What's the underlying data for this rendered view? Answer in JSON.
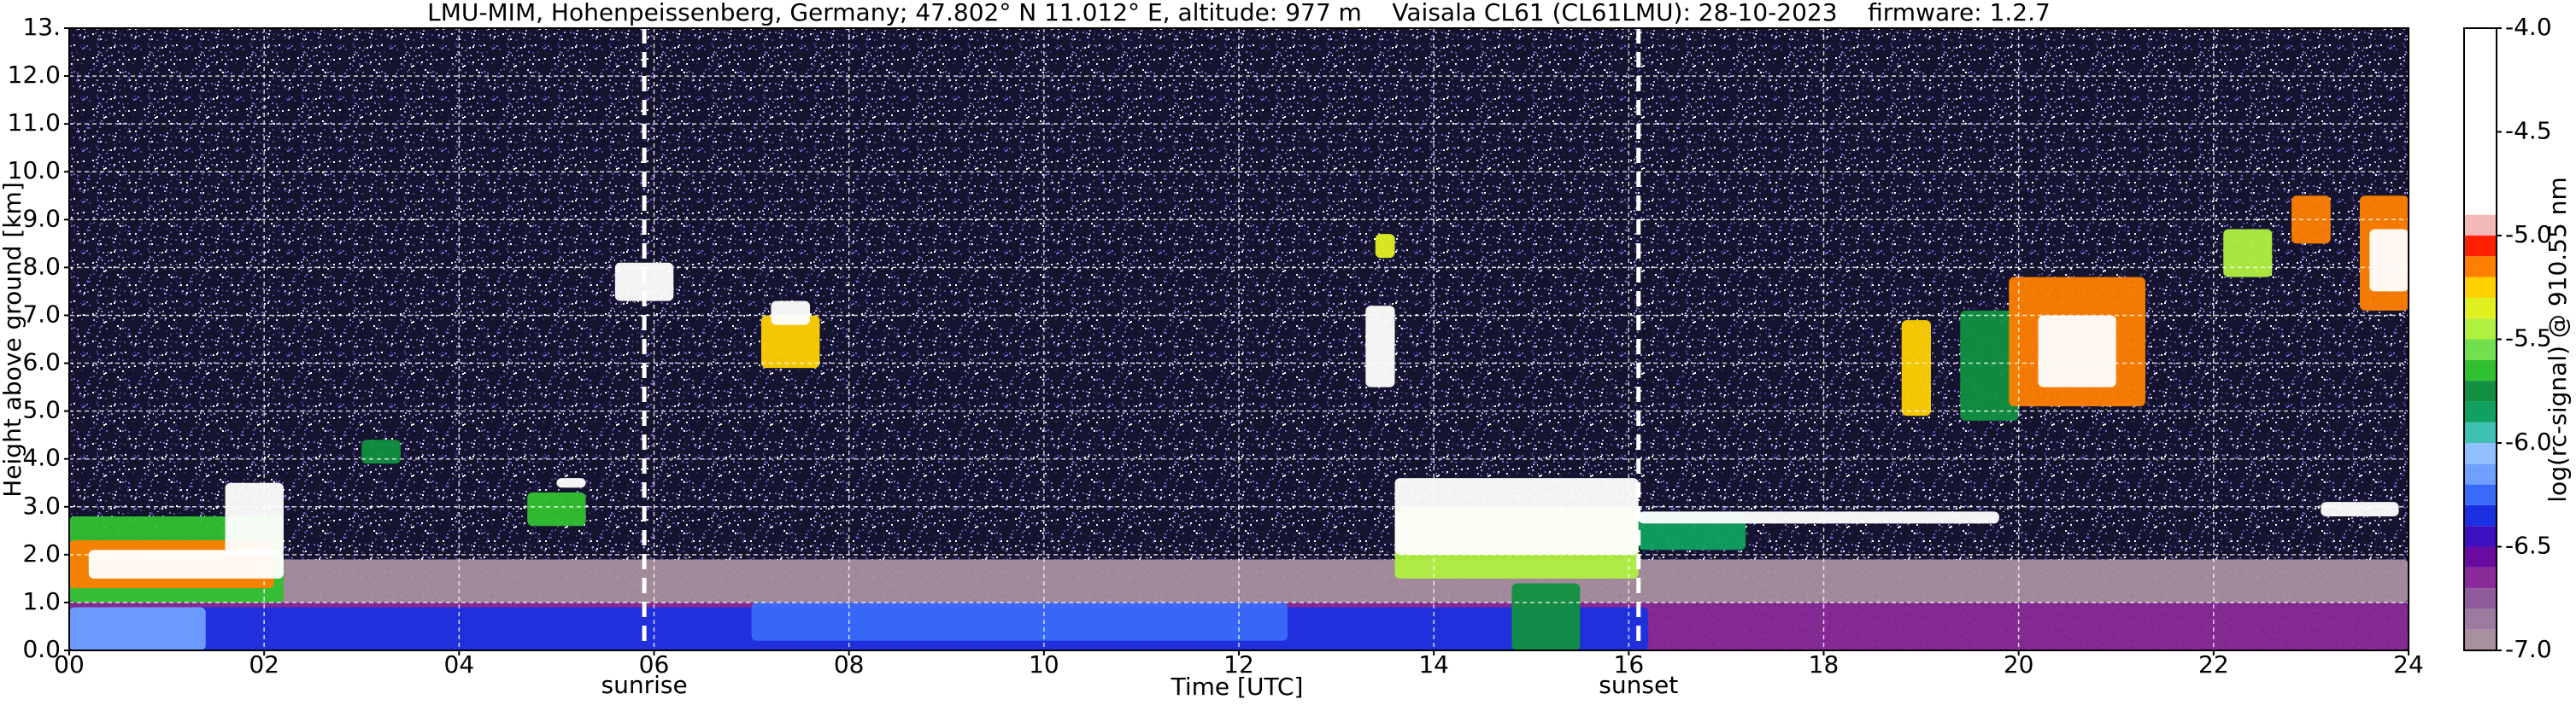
{
  "chart_data": {
    "type": "heatmap",
    "title": "LMU-MIM, Hohenpeissenberg, Germany; 47.802° N 11.012° E, altitude: 977 m    Vaisala CL61 (CL61LMU): 28-10-2023    firmware: 1.2.7",
    "x_label": "Time [UTC]",
    "y_label": "Height above ground [km]",
    "xlim": [
      0,
      24
    ],
    "xticks": [
      {
        "value": 0,
        "label": "00"
      },
      {
        "value": 2,
        "label": "02"
      },
      {
        "value": 4,
        "label": "04"
      },
      {
        "value": 6,
        "label": "06"
      },
      {
        "value": 8,
        "label": "08"
      },
      10,
      12,
      14,
      16,
      18,
      20,
      22,
      24
    ],
    "ylim": [
      0,
      13
    ],
    "yticks": [
      {
        "value": 0,
        "label": "0.0"
      },
      {
        "value": 1,
        "label": "1.0"
      },
      {
        "value": 2,
        "label": "2.0"
      },
      {
        "value": 3,
        "label": "3.0"
      },
      {
        "value": 4,
        "label": "4.0"
      },
      {
        "value": 5,
        "label": "5.0"
      },
      {
        "value": 6,
        "label": "6.0"
      },
      {
        "value": 7,
        "label": "7.0"
      },
      {
        "value": 8,
        "label": "8.0"
      },
      {
        "value": 9,
        "label": "9.0"
      },
      {
        "value": 10,
        "label": "10.0"
      },
      {
        "value": 11,
        "label": "11.0"
      },
      {
        "value": 12,
        "label": "12.0"
      },
      {
        "value": 13,
        "label": "13."
      }
    ],
    "grid": true,
    "annotations": [
      {
        "text": "sunrise",
        "x": 5.9
      },
      {
        "text": "sunset",
        "x": 16.1
      }
    ],
    "colorbar": {
      "label": "log(rc-signal) @ 910.55 nm",
      "lim": [
        -7,
        -4
      ],
      "ticks": [
        {
          "value": -7,
          "label": "-7.0"
        },
        -6.5,
        {
          "value": -6,
          "label": "-6.0"
        },
        -5.5,
        {
          "value": -5,
          "label": "-5.0"
        },
        -4.5,
        {
          "value": -4,
          "label": "-4.0"
        }
      ],
      "bounds": [
        -7,
        -6.9,
        -6.8,
        -6.7,
        -6.6,
        -6.5,
        -6.4,
        -6.3,
        -6.2,
        -6.1,
        -6,
        -5.9,
        -5.8,
        -5.7,
        -5.6,
        -5.5,
        -5.4,
        -5.3,
        -5.2,
        -5.1,
        -5,
        -4.9,
        -4
      ],
      "colors": [
        "#a8909f",
        "#9c7ba0",
        "#8e5a9a",
        "#8a2a98",
        "#6a0aa0",
        "#3a10c0",
        "#1a30e0",
        "#3a6af8",
        "#70a0ff",
        "#90c0ff",
        "#40c0b0",
        "#10a060",
        "#109040",
        "#30c030",
        "#70e050",
        "#b0f040",
        "#e0f020",
        "#ffd000",
        "#ff8000",
        "#ff2000",
        "#f3b8b8",
        "#ffffff"
      ]
    },
    "regions": [
      {
        "x": [
          0,
          24
        ],
        "y": [
          1.0,
          1.9
        ],
        "value": -6.95
      },
      {
        "x": [
          0,
          24
        ],
        "y": [
          0,
          1.0
        ],
        "value": -6.65
      },
      {
        "x": [
          0,
          16.2
        ],
        "y": [
          0,
          0.9
        ],
        "value": -6.35
      },
      {
        "x": [
          7.0,
          12.5
        ],
        "y": [
          0.2,
          1.0
        ],
        "value": -6.25
      },
      {
        "x": [
          0,
          1.4
        ],
        "y": [
          0,
          0.9
        ],
        "value": -6.15
      },
      {
        "x": [
          0,
          2.2
        ],
        "y": [
          1.0,
          2.8
        ],
        "value": -5.65
      },
      {
        "x": [
          0,
          2.1
        ],
        "y": [
          1.3,
          2.3
        ],
        "value": -5.15
      },
      {
        "x": [
          0.2,
          2.2
        ],
        "y": [
          1.5,
          2.1
        ],
        "value": -4.5
      },
      {
        "x": [
          1.6,
          2.2
        ],
        "y": [
          2.0,
          3.5
        ],
        "value": -4.5
      },
      {
        "x": [
          3.0,
          3.4
        ],
        "y": [
          3.9,
          4.4
        ],
        "value": -5.75
      },
      {
        "x": [
          4.7,
          5.3
        ],
        "y": [
          2.6,
          3.3
        ],
        "value": -5.65
      },
      {
        "x": [
          5.0,
          5.3
        ],
        "y": [
          3.4,
          3.6
        ],
        "value": -4.5
      },
      {
        "x": [
          5.6,
          6.2
        ],
        "y": [
          7.3,
          8.1
        ],
        "value": -4.5
      },
      {
        "x": [
          7.1,
          7.7
        ],
        "y": [
          5.9,
          7.0
        ],
        "value": -5.25
      },
      {
        "x": [
          7.2,
          7.6
        ],
        "y": [
          6.8,
          7.3
        ],
        "value": -4.5
      },
      {
        "x": [
          13.3,
          13.6
        ],
        "y": [
          5.5,
          7.2
        ],
        "value": -4.5
      },
      {
        "x": [
          13.4,
          13.6
        ],
        "y": [
          8.2,
          8.7
        ],
        "value": -5.35
      },
      {
        "x": [
          13.6,
          16.1
        ],
        "y": [
          1.5,
          3.0
        ],
        "value": -5.45
      },
      {
        "x": [
          13.6,
          16.1
        ],
        "y": [
          2.0,
          3.6
        ],
        "value": -4.5
      },
      {
        "x": [
          14.8,
          15.5
        ],
        "y": [
          0.0,
          1.4
        ],
        "value": -5.75
      },
      {
        "x": [
          16.1,
          17.2
        ],
        "y": [
          2.1,
          2.9
        ],
        "value": -5.85
      },
      {
        "x": [
          16.1,
          19.8
        ],
        "y": [
          2.65,
          2.9
        ],
        "value": -4.5
      },
      {
        "x": [
          18.8,
          19.1
        ],
        "y": [
          4.9,
          6.9
        ],
        "value": -5.25
      },
      {
        "x": [
          19.4,
          20.0
        ],
        "y": [
          4.8,
          7.1
        ],
        "value": -5.75
      },
      {
        "x": [
          19.9,
          21.3
        ],
        "y": [
          5.1,
          7.8
        ],
        "value": -5.15
      },
      {
        "x": [
          20.2,
          21.0
        ],
        "y": [
          5.5,
          7.0
        ],
        "value": -4.5
      },
      {
        "x": [
          22.1,
          22.6
        ],
        "y": [
          7.8,
          8.8
        ],
        "value": -5.45
      },
      {
        "x": [
          22.8,
          23.2
        ],
        "y": [
          8.5,
          9.5
        ],
        "value": -5.15
      },
      {
        "x": [
          23.1,
          23.9
        ],
        "y": [
          2.8,
          3.1
        ],
        "value": -4.5
      },
      {
        "x": [
          23.5,
          24
        ],
        "y": [
          7.1,
          9.5
        ],
        "value": -5.15
      },
      {
        "x": [
          23.6,
          24
        ],
        "y": [
          7.5,
          8.8
        ],
        "value": -4.5
      }
    ]
  }
}
